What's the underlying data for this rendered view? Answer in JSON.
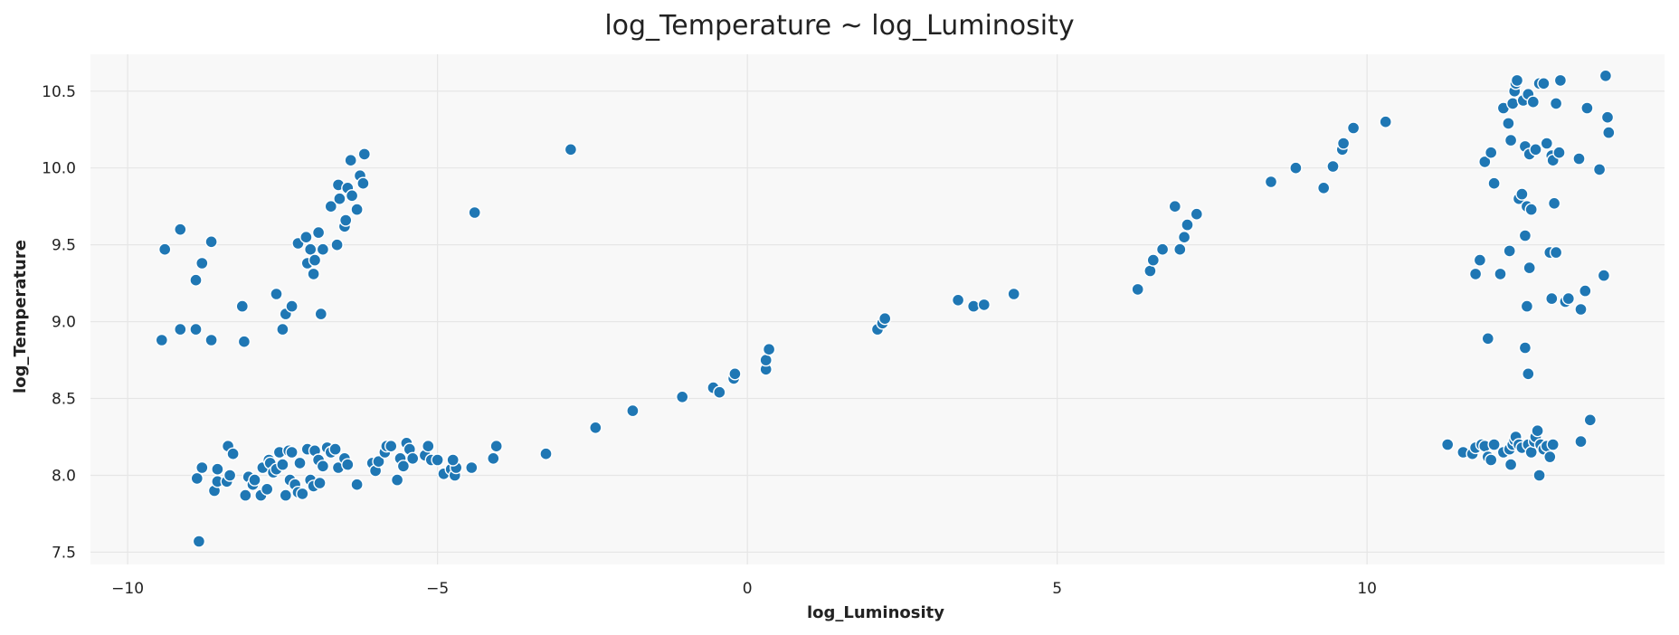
{
  "chart_data": {
    "type": "scatter",
    "title": "log_Temperature ~ log_Luminosity",
    "xlabel": "log_Luminosity",
    "ylabel": "log_Temperature",
    "xlim": [
      -10.6,
      14.8
    ],
    "ylim": [
      7.42,
      10.74
    ],
    "xticks": [
      -10,
      -5,
      0,
      5,
      10
    ],
    "xtick_labels": [
      "−10",
      "−5",
      "0",
      "5",
      "10"
    ],
    "yticks": [
      7.5,
      8.0,
      8.5,
      9.0,
      9.5,
      10.0,
      10.5
    ],
    "ytick_labels": [
      "7.5",
      "8.0",
      "8.5",
      "9.0",
      "9.5",
      "10.0",
      "10.5"
    ],
    "grid": true,
    "background_color": "#f8f8f8",
    "grid_color": "#e6e6e6",
    "point_color": "#1f77b4",
    "points": [
      [
        -9.45,
        8.88
      ],
      [
        -9.4,
        9.47
      ],
      [
        -9.15,
        9.6
      ],
      [
        -9.15,
        8.95
      ],
      [
        -8.9,
        8.95
      ],
      [
        -8.9,
        9.27
      ],
      [
        -8.8,
        9.38
      ],
      [
        -8.65,
        9.52
      ],
      [
        -8.65,
        8.88
      ],
      [
        -8.15,
        9.1
      ],
      [
        -8.12,
        8.87
      ],
      [
        -7.6,
        9.18
      ],
      [
        -7.5,
        8.95
      ],
      [
        -7.45,
        9.05
      ],
      [
        -7.35,
        9.1
      ],
      [
        -7.25,
        9.51
      ],
      [
        -7.12,
        9.55
      ],
      [
        -7.1,
        9.38
      ],
      [
        -7.05,
        9.47
      ],
      [
        -7.0,
        9.31
      ],
      [
        -6.98,
        9.4
      ],
      [
        -6.92,
        9.58
      ],
      [
        -6.88,
        9.05
      ],
      [
        -6.85,
        9.47
      ],
      [
        -6.72,
        9.75
      ],
      [
        -6.62,
        9.5
      ],
      [
        -6.58,
        9.8
      ],
      [
        -6.6,
        9.89
      ],
      [
        -6.5,
        9.62
      ],
      [
        -6.48,
        9.66
      ],
      [
        -6.45,
        9.87
      ],
      [
        -6.4,
        10.05
      ],
      [
        -6.38,
        9.82
      ],
      [
        -6.3,
        9.73
      ],
      [
        -6.25,
        9.95
      ],
      [
        -6.2,
        9.9
      ],
      [
        -6.18,
        10.09
      ],
      [
        -4.4,
        9.71
      ],
      [
        -2.85,
        10.12
      ],
      [
        -8.85,
        7.57
      ],
      [
        -8.88,
        7.98
      ],
      [
        -8.8,
        8.05
      ],
      [
        -8.6,
        7.9
      ],
      [
        -8.55,
        7.96
      ],
      [
        -8.55,
        8.04
      ],
      [
        -8.4,
        7.96
      ],
      [
        -8.38,
        8.19
      ],
      [
        -8.35,
        8.0
      ],
      [
        -8.3,
        8.14
      ],
      [
        -8.1,
        7.87
      ],
      [
        -8.05,
        7.99
      ],
      [
        -7.98,
        7.94
      ],
      [
        -7.95,
        7.97
      ],
      [
        -7.85,
        7.87
      ],
      [
        -7.82,
        8.05
      ],
      [
        -7.75,
        7.91
      ],
      [
        -7.72,
        8.1
      ],
      [
        -7.7,
        8.08
      ],
      [
        -7.65,
        8.02
      ],
      [
        -7.6,
        8.04
      ],
      [
        -7.55,
        8.15
      ],
      [
        -7.5,
        8.07
      ],
      [
        -7.45,
        7.87
      ],
      [
        -7.4,
        8.16
      ],
      [
        -7.38,
        7.97
      ],
      [
        -7.35,
        8.15
      ],
      [
        -7.3,
        7.94
      ],
      [
        -7.25,
        7.89
      ],
      [
        -7.22,
        8.08
      ],
      [
        -7.18,
        7.88
      ],
      [
        -7.1,
        8.17
      ],
      [
        -7.05,
        7.97
      ],
      [
        -7.0,
        7.93
      ],
      [
        -6.98,
        8.16
      ],
      [
        -6.92,
        8.1
      ],
      [
        -6.9,
        7.95
      ],
      [
        -6.85,
        8.06
      ],
      [
        -6.78,
        8.18
      ],
      [
        -6.72,
        8.15
      ],
      [
        -6.65,
        8.17
      ],
      [
        -6.6,
        8.05
      ],
      [
        -6.5,
        8.11
      ],
      [
        -6.45,
        8.07
      ],
      [
        -6.3,
        7.94
      ],
      [
        -6.05,
        8.08
      ],
      [
        -6.0,
        8.03
      ],
      [
        -5.95,
        8.09
      ],
      [
        -5.85,
        8.15
      ],
      [
        -5.82,
        8.19
      ],
      [
        -5.75,
        8.19
      ],
      [
        -5.65,
        7.97
      ],
      [
        -5.6,
        8.11
      ],
      [
        -5.55,
        8.06
      ],
      [
        -5.5,
        8.21
      ],
      [
        -5.45,
        8.17
      ],
      [
        -5.4,
        8.11
      ],
      [
        -5.2,
        8.13
      ],
      [
        -5.15,
        8.19
      ],
      [
        -5.1,
        8.1
      ],
      [
        -5.0,
        8.1
      ],
      [
        -4.9,
        8.01
      ],
      [
        -4.78,
        8.04
      ],
      [
        -4.72,
        8.0
      ],
      [
        -4.7,
        8.05
      ],
      [
        -4.75,
        8.1
      ],
      [
        -4.45,
        8.05
      ],
      [
        -4.1,
        8.11
      ],
      [
        -4.05,
        8.19
      ],
      [
        -3.25,
        8.14
      ],
      [
        -2.45,
        8.31
      ],
      [
        -1.85,
        8.42
      ],
      [
        -1.05,
        8.51
      ],
      [
        -0.55,
        8.57
      ],
      [
        -0.45,
        8.54
      ],
      [
        -0.22,
        8.63
      ],
      [
        -0.2,
        8.66
      ],
      [
        0.3,
        8.69
      ],
      [
        0.3,
        8.75
      ],
      [
        0.35,
        8.82
      ],
      [
        2.1,
        8.95
      ],
      [
        2.18,
        8.99
      ],
      [
        2.22,
        9.02
      ],
      [
        3.4,
        9.14
      ],
      [
        3.65,
        9.1
      ],
      [
        3.82,
        9.11
      ],
      [
        4.3,
        9.18
      ],
      [
        6.3,
        9.21
      ],
      [
        6.5,
        9.33
      ],
      [
        6.55,
        9.4
      ],
      [
        6.7,
        9.47
      ],
      [
        6.9,
        9.75
      ],
      [
        6.98,
        9.47
      ],
      [
        7.05,
        9.55
      ],
      [
        7.1,
        9.63
      ],
      [
        7.25,
        9.7
      ],
      [
        8.45,
        9.91
      ],
      [
        8.85,
        10.0
      ],
      [
        9.3,
        9.87
      ],
      [
        9.45,
        10.01
      ],
      [
        9.6,
        10.12
      ],
      [
        9.62,
        10.16
      ],
      [
        9.78,
        10.26
      ],
      [
        10.3,
        10.3
      ],
      [
        11.3,
        8.2
      ],
      [
        11.55,
        8.15
      ],
      [
        11.7,
        8.14
      ],
      [
        11.75,
        8.18
      ],
      [
        11.85,
        8.2
      ],
      [
        11.9,
        8.19
      ],
      [
        11.95,
        8.12
      ],
      [
        12.0,
        8.1
      ],
      [
        12.05,
        8.2
      ],
      [
        12.2,
        8.15
      ],
      [
        12.3,
        8.17
      ],
      [
        12.32,
        8.07
      ],
      [
        12.35,
        8.2
      ],
      [
        12.38,
        8.23
      ],
      [
        12.4,
        8.25
      ],
      [
        12.45,
        8.2
      ],
      [
        12.5,
        8.18
      ],
      [
        12.6,
        8.2
      ],
      [
        12.65,
        8.15
      ],
      [
        12.7,
        8.22
      ],
      [
        12.72,
        8.25
      ],
      [
        12.75,
        8.29
      ],
      [
        12.78,
        8.0
      ],
      [
        12.8,
        8.2
      ],
      [
        12.85,
        8.17
      ],
      [
        12.9,
        8.19
      ],
      [
        12.95,
        8.12
      ],
      [
        13.0,
        8.2
      ],
      [
        13.45,
        8.22
      ],
      [
        13.6,
        8.36
      ],
      [
        11.95,
        8.89
      ],
      [
        12.55,
        8.83
      ],
      [
        12.6,
        8.66
      ],
      [
        12.58,
        9.1
      ],
      [
        11.75,
        9.31
      ],
      [
        11.82,
        9.4
      ],
      [
        12.15,
        9.31
      ],
      [
        12.3,
        9.46
      ],
      [
        12.55,
        9.56
      ],
      [
        12.62,
        9.35
      ],
      [
        12.95,
        9.45
      ],
      [
        13.05,
        9.45
      ],
      [
        12.98,
        9.15
      ],
      [
        13.2,
        9.13
      ],
      [
        13.25,
        9.15
      ],
      [
        13.45,
        9.08
      ],
      [
        13.52,
        9.2
      ],
      [
        13.82,
        9.3
      ],
      [
        11.9,
        10.04
      ],
      [
        12.0,
        10.1
      ],
      [
        12.05,
        9.9
      ],
      [
        12.2,
        10.39
      ],
      [
        12.28,
        10.29
      ],
      [
        12.32,
        10.18
      ],
      [
        12.35,
        10.42
      ],
      [
        12.38,
        10.5
      ],
      [
        12.4,
        10.55
      ],
      [
        12.42,
        10.57
      ],
      [
        12.45,
        9.8
      ],
      [
        12.5,
        9.83
      ],
      [
        12.52,
        10.44
      ],
      [
        12.55,
        10.14
      ],
      [
        12.58,
        9.75
      ],
      [
        12.6,
        10.48
      ],
      [
        12.62,
        10.09
      ],
      [
        12.65,
        9.73
      ],
      [
        12.68,
        10.43
      ],
      [
        12.72,
        10.12
      ],
      [
        12.78,
        10.55
      ],
      [
        12.85,
        10.55
      ],
      [
        12.9,
        10.16
      ],
      [
        12.98,
        10.08
      ],
      [
        13.0,
        10.05
      ],
      [
        13.02,
        9.77
      ],
      [
        13.05,
        10.42
      ],
      [
        13.1,
        10.1
      ],
      [
        13.12,
        10.57
      ],
      [
        13.42,
        10.06
      ],
      [
        13.55,
        10.39
      ],
      [
        13.75,
        9.99
      ],
      [
        13.85,
        10.6
      ],
      [
        13.88,
        10.33
      ],
      [
        13.9,
        10.23
      ]
    ]
  }
}
